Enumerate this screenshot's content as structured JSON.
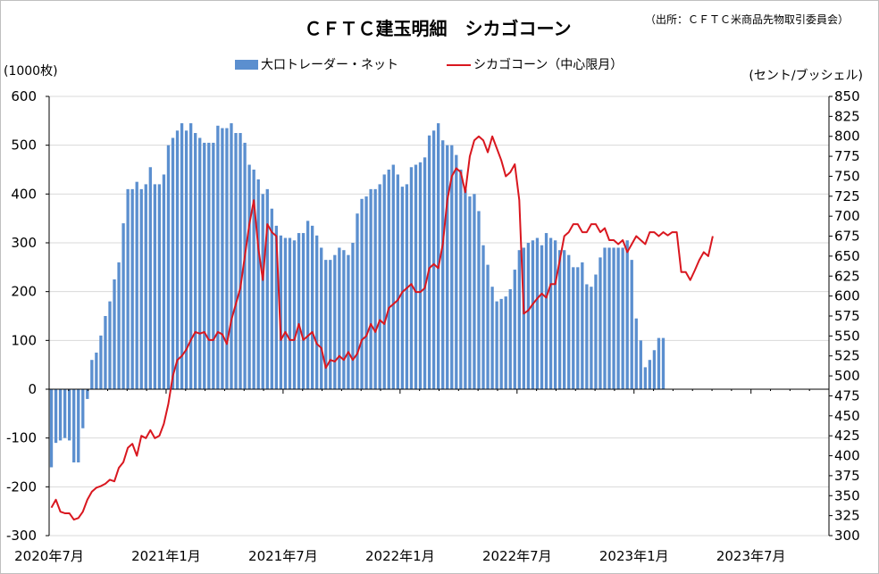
{
  "chart_data": {
    "type": "bar+line",
    "title": "ＣＦＴＣ建玉明細　シカゴコーン",
    "source": "（出所：ＣＦＴＣ米商品先物取引委員会）",
    "y_left_unit": "(1000枚)",
    "y_right_unit": "(セント/ブッシェル)",
    "y_left_range": [
      -300,
      600
    ],
    "y_left_ticks": [
      "600",
      "500",
      "400",
      "300",
      "200",
      "100",
      "0",
      "-100",
      "-200",
      "-300"
    ],
    "y_right_range": [
      300,
      850
    ],
    "y_right_ticks": [
      "850",
      "825",
      "800",
      "775",
      "750",
      "725",
      "700",
      "675",
      "650",
      "625",
      "600",
      "575",
      "550",
      "525",
      "500",
      "475",
      "450",
      "425",
      "400",
      "375",
      "350",
      "325",
      "300"
    ],
    "x_range_months": [
      "2020-07",
      "2023-11"
    ],
    "x_ticks": [
      {
        "label": "2020年7月",
        "date": "2020-07"
      },
      {
        "label": "2021年1月",
        "date": "2021-01"
      },
      {
        "label": "2021年7月",
        "date": "2021-07"
      },
      {
        "label": "2022年1月",
        "date": "2022-01"
      },
      {
        "label": "2022年7月",
        "date": "2022-07"
      },
      {
        "label": "2023年1月",
        "date": "2023-01"
      },
      {
        "label": "2023年7月",
        "date": "2023-07"
      }
    ],
    "legend": {
      "bar": "大口トレーダー・ネット",
      "line": "シカゴコーン（中心限月）"
    },
    "colors": {
      "bar": "#5b8fcf",
      "line": "#d9171f",
      "grid": "#d9d9d9"
    },
    "series": [
      {
        "name": "大口トレーダー・ネット",
        "type": "bar",
        "axis": "left",
        "values": [
          -160,
          -110,
          -105,
          -100,
          -105,
          -150,
          -150,
          -80,
          -20,
          60,
          75,
          110,
          150,
          180,
          225,
          260,
          340,
          410,
          410,
          425,
          410,
          420,
          455,
          420,
          420,
          440,
          500,
          515,
          530,
          545,
          530,
          545,
          525,
          515,
          505,
          505,
          505,
          540,
          535,
          535,
          545,
          525,
          525,
          505,
          460,
          450,
          430,
          400,
          410,
          370,
          335,
          315,
          310,
          310,
          305,
          320,
          320,
          345,
          335,
          315,
          290,
          265,
          265,
          275,
          290,
          285,
          275,
          300,
          360,
          390,
          395,
          410,
          410,
          420,
          440,
          450,
          460,
          440,
          415,
          420,
          455,
          460,
          465,
          475,
          520,
          530,
          545,
          510,
          500,
          500,
          480,
          450,
          410,
          395,
          400,
          365,
          295,
          255,
          210,
          180,
          185,
          190,
          205,
          245,
          285,
          290,
          300,
          305,
          310,
          295,
          320,
          310,
          305,
          285,
          285,
          275,
          250,
          250,
          260,
          215,
          210,
          235,
          270,
          290,
          290,
          290,
          290,
          290,
          305,
          265,
          145,
          100,
          45,
          60,
          80,
          105,
          105
        ]
      },
      {
        "name": "シカゴコーン（中心限月）",
        "type": "line",
        "axis": "right",
        "values": [
          335,
          345,
          330,
          328,
          328,
          320,
          322,
          330,
          345,
          355,
          360,
          362,
          365,
          370,
          368,
          385,
          392,
          410,
          415,
          400,
          425,
          422,
          432,
          422,
          425,
          440,
          465,
          500,
          520,
          525,
          533,
          545,
          555,
          553,
          555,
          545,
          545,
          555,
          552,
          540,
          570,
          590,
          610,
          650,
          690,
          720,
          660,
          620,
          690,
          680,
          675,
          545,
          555,
          545,
          545,
          565,
          545,
          550,
          555,
          540,
          535,
          510,
          520,
          518,
          525,
          520,
          530,
          520,
          528,
          545,
          550,
          565,
          555,
          570,
          565,
          585,
          590,
          595,
          605,
          610,
          615,
          605,
          605,
          610,
          635,
          640,
          635,
          665,
          720,
          750,
          760,
          755,
          730,
          775,
          795,
          800,
          795,
          780,
          800,
          785,
          770,
          750,
          755,
          765,
          720,
          578,
          582,
          590,
          597,
          603,
          598,
          615,
          615,
          645,
          675,
          680,
          690,
          690,
          680,
          680,
          690,
          690,
          680,
          685,
          670,
          670,
          665,
          670,
          655,
          665,
          675,
          670,
          665,
          680,
          680,
          675,
          680,
          676,
          680,
          680,
          630,
          630,
          620,
          632,
          645,
          655,
          650,
          675
        ]
      }
    ]
  }
}
